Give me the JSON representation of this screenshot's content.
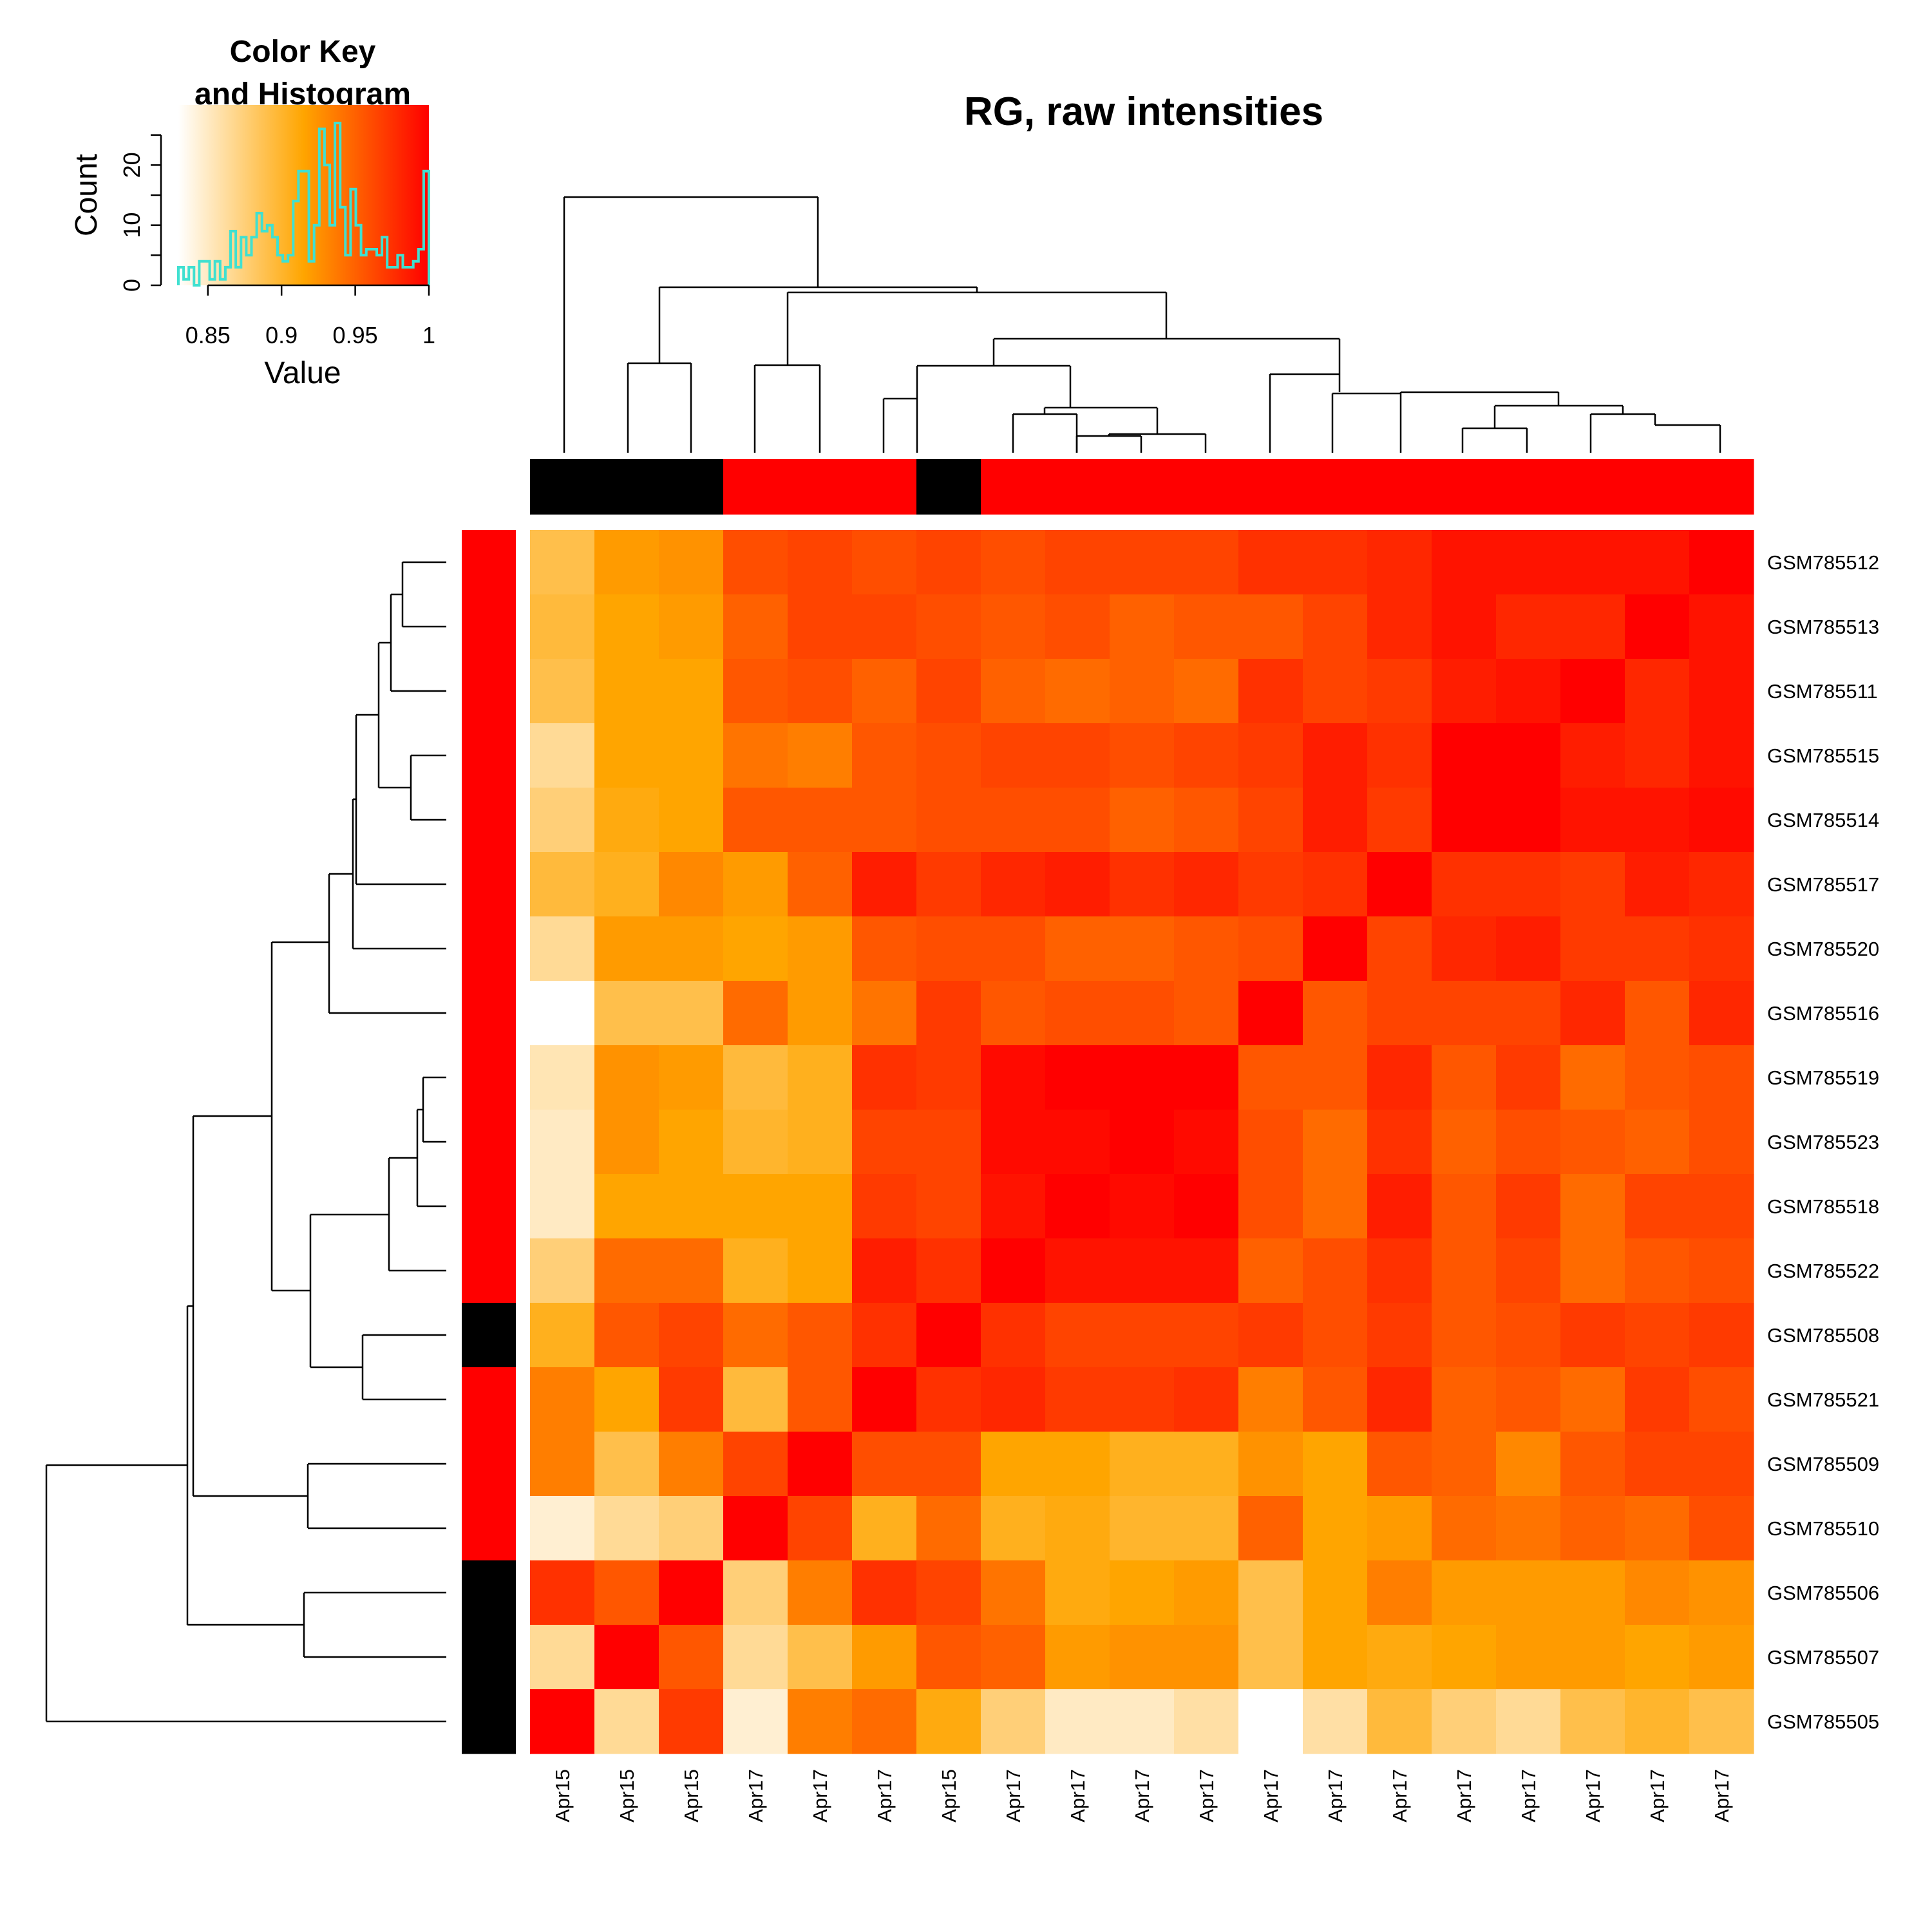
{
  "chart_data": {
    "type": "heatmap",
    "title": "RG, raw intensities",
    "row_labels": [
      "GSM785512",
      "GSM785513",
      "GSM785511",
      "GSM785515",
      "GSM785514",
      "GSM785517",
      "GSM785520",
      "GSM785516",
      "GSM785519",
      "GSM785523",
      "GSM785518",
      "GSM785522",
      "GSM785508",
      "GSM785521",
      "GSM785509",
      "GSM785510",
      "GSM785506",
      "GSM785507",
      "GSM785505"
    ],
    "column_labels": [
      "Apr15",
      "Apr15",
      "Apr15",
      "Apr17",
      "Apr17",
      "Apr17",
      "Apr15",
      "Apr17",
      "Apr17",
      "Apr17",
      "Apr17",
      "Apr17",
      "Apr17",
      "Apr17",
      "Apr17",
      "Apr17",
      "Apr17",
      "Apr17",
      "Apr17"
    ],
    "row_side_colors": [
      "#ff0000",
      "#ff0000",
      "#ff0000",
      "#ff0000",
      "#ff0000",
      "#ff0000",
      "#ff0000",
      "#ff0000",
      "#ff0000",
      "#ff0000",
      "#ff0000",
      "#ff0000",
      "#000000",
      "#ff0000",
      "#ff0000",
      "#ff0000",
      "#000000",
      "#000000",
      "#000000"
    ],
    "column_side_colors": [
      "#000000",
      "#000000",
      "#000000",
      "#ff0000",
      "#ff0000",
      "#ff0000",
      "#000000",
      "#ff0000",
      "#ff0000",
      "#ff0000",
      "#ff0000",
      "#ff0000",
      "#ff0000",
      "#ff0000",
      "#ff0000",
      "#ff0000",
      "#ff0000",
      "#ff0000",
      "#ff0000"
    ],
    "values": [
      [
        0.89,
        0.92,
        0.925,
        0.96,
        0.965,
        0.96,
        0.965,
        0.96,
        0.965,
        0.965,
        0.965,
        0.975,
        0.975,
        0.98,
        0.99,
        0.99,
        0.99,
        0.99,
        1.0
      ],
      [
        0.895,
        0.915,
        0.92,
        0.95,
        0.965,
        0.965,
        0.96,
        0.955,
        0.96,
        0.95,
        0.955,
        0.955,
        0.965,
        0.98,
        0.99,
        0.98,
        0.98,
        1.0,
        0.99
      ],
      [
        0.89,
        0.915,
        0.915,
        0.955,
        0.96,
        0.95,
        0.965,
        0.95,
        0.945,
        0.95,
        0.945,
        0.975,
        0.965,
        0.97,
        0.985,
        0.99,
        1.0,
        0.98,
        0.99
      ],
      [
        0.865,
        0.915,
        0.915,
        0.94,
        0.935,
        0.955,
        0.96,
        0.965,
        0.965,
        0.96,
        0.965,
        0.97,
        0.985,
        0.975,
        1.0,
        1.0,
        0.985,
        0.98,
        0.99
      ],
      [
        0.875,
        0.91,
        0.915,
        0.955,
        0.955,
        0.955,
        0.96,
        0.96,
        0.96,
        0.95,
        0.955,
        0.965,
        0.985,
        0.97,
        1.0,
        1.0,
        0.99,
        0.99,
        0.995
      ],
      [
        0.895,
        0.905,
        0.93,
        0.92,
        0.95,
        0.985,
        0.97,
        0.98,
        0.985,
        0.975,
        0.98,
        0.97,
        0.975,
        1.0,
        0.975,
        0.975,
        0.97,
        0.985,
        0.98
      ],
      [
        0.865,
        0.92,
        0.92,
        0.915,
        0.92,
        0.955,
        0.96,
        0.96,
        0.95,
        0.95,
        0.955,
        0.96,
        1.0,
        0.965,
        0.98,
        0.985,
        0.97,
        0.97,
        0.975
      ],
      [
        0.83,
        0.89,
        0.89,
        0.945,
        0.92,
        0.94,
        0.97,
        0.955,
        0.96,
        0.96,
        0.955,
        1.0,
        0.955,
        0.965,
        0.965,
        0.965,
        0.98,
        0.955,
        0.98
      ],
      [
        0.855,
        0.925,
        0.92,
        0.895,
        0.905,
        0.975,
        0.97,
        0.995,
        1.0,
        1.0,
        1.0,
        0.955,
        0.955,
        0.98,
        0.955,
        0.97,
        0.945,
        0.955,
        0.96
      ],
      [
        0.85,
        0.925,
        0.915,
        0.9,
        0.905,
        0.965,
        0.965,
        0.995,
        0.995,
        1.0,
        0.995,
        0.96,
        0.945,
        0.975,
        0.95,
        0.96,
        0.955,
        0.95,
        0.96
      ],
      [
        0.85,
        0.915,
        0.915,
        0.915,
        0.915,
        0.97,
        0.965,
        0.99,
        1.0,
        0.995,
        1.0,
        0.96,
        0.945,
        0.985,
        0.955,
        0.97,
        0.945,
        0.965,
        0.965
      ],
      [
        0.875,
        0.945,
        0.945,
        0.905,
        0.915,
        0.985,
        0.975,
        1.0,
        0.99,
        0.99,
        0.99,
        0.95,
        0.96,
        0.975,
        0.955,
        0.965,
        0.945,
        0.955,
        0.96
      ],
      [
        0.905,
        0.955,
        0.965,
        0.945,
        0.955,
        0.975,
        1.0,
        0.975,
        0.965,
        0.965,
        0.965,
        0.97,
        0.96,
        0.97,
        0.955,
        0.96,
        0.97,
        0.965,
        0.97
      ],
      [
        0.935,
        0.915,
        0.97,
        0.895,
        0.955,
        1.0,
        0.975,
        0.98,
        0.97,
        0.97,
        0.975,
        0.935,
        0.955,
        0.98,
        0.95,
        0.955,
        0.945,
        0.97,
        0.96
      ],
      [
        0.935,
        0.89,
        0.935,
        0.965,
        1.0,
        0.96,
        0.96,
        0.915,
        0.915,
        0.905,
        0.905,
        0.925,
        0.915,
        0.955,
        0.95,
        0.93,
        0.955,
        0.965,
        0.965
      ],
      [
        0.845,
        0.865,
        0.875,
        1.0,
        0.965,
        0.905,
        0.945,
        0.905,
        0.91,
        0.9,
        0.9,
        0.95,
        0.915,
        0.92,
        0.945,
        0.94,
        0.95,
        0.945,
        0.96
      ],
      [
        0.975,
        0.955,
        1.0,
        0.875,
        0.935,
        0.975,
        0.965,
        0.94,
        0.91,
        0.915,
        0.92,
        0.89,
        0.915,
        0.935,
        0.92,
        0.92,
        0.92,
        0.93,
        0.925
      ],
      [
        0.865,
        1.0,
        0.955,
        0.865,
        0.89,
        0.92,
        0.955,
        0.95,
        0.92,
        0.925,
        0.925,
        0.89,
        0.915,
        0.91,
        0.915,
        0.92,
        0.92,
        0.915,
        0.92
      ],
      [
        1.0,
        0.865,
        0.97,
        0.845,
        0.935,
        0.945,
        0.91,
        0.875,
        0.85,
        0.85,
        0.86,
        0.83,
        0.86,
        0.895,
        0.875,
        0.865,
        0.89,
        0.9,
        0.89
      ]
    ],
    "color_key": {
      "title_line1": "Color Key",
      "title_line2": "and Histogram",
      "xlabel": "Value",
      "ylabel": "Count",
      "x_ticks": [
        "0.85",
        "0.9",
        "0.95",
        "1"
      ],
      "x_tick_values": [
        0.85,
        0.9,
        0.95,
        1.0
      ],
      "y_ticks": [
        "0",
        "10",
        "20"
      ],
      "y_tick_values": [
        0,
        10,
        20
      ],
      "xlim": [
        0.83,
        1.0
      ],
      "ylim": [
        0,
        30
      ],
      "colors": [
        "#ffffff",
        "#ffa500",
        "#ff0000"
      ],
      "histogram_color": "#40e0d0",
      "histogram_bins": [
        3,
        1,
        3,
        0,
        4,
        4,
        1,
        4,
        1,
        3,
        9,
        3,
        8,
        5,
        8,
        12,
        9,
        10,
        8,
        5,
        4,
        5,
        14,
        19,
        19,
        4,
        10,
        26,
        20,
        10,
        27,
        13,
        5,
        16,
        10,
        5,
        6,
        6,
        5,
        8,
        3,
        3,
        5,
        3,
        3,
        4,
        6,
        19
      ]
    }
  }
}
